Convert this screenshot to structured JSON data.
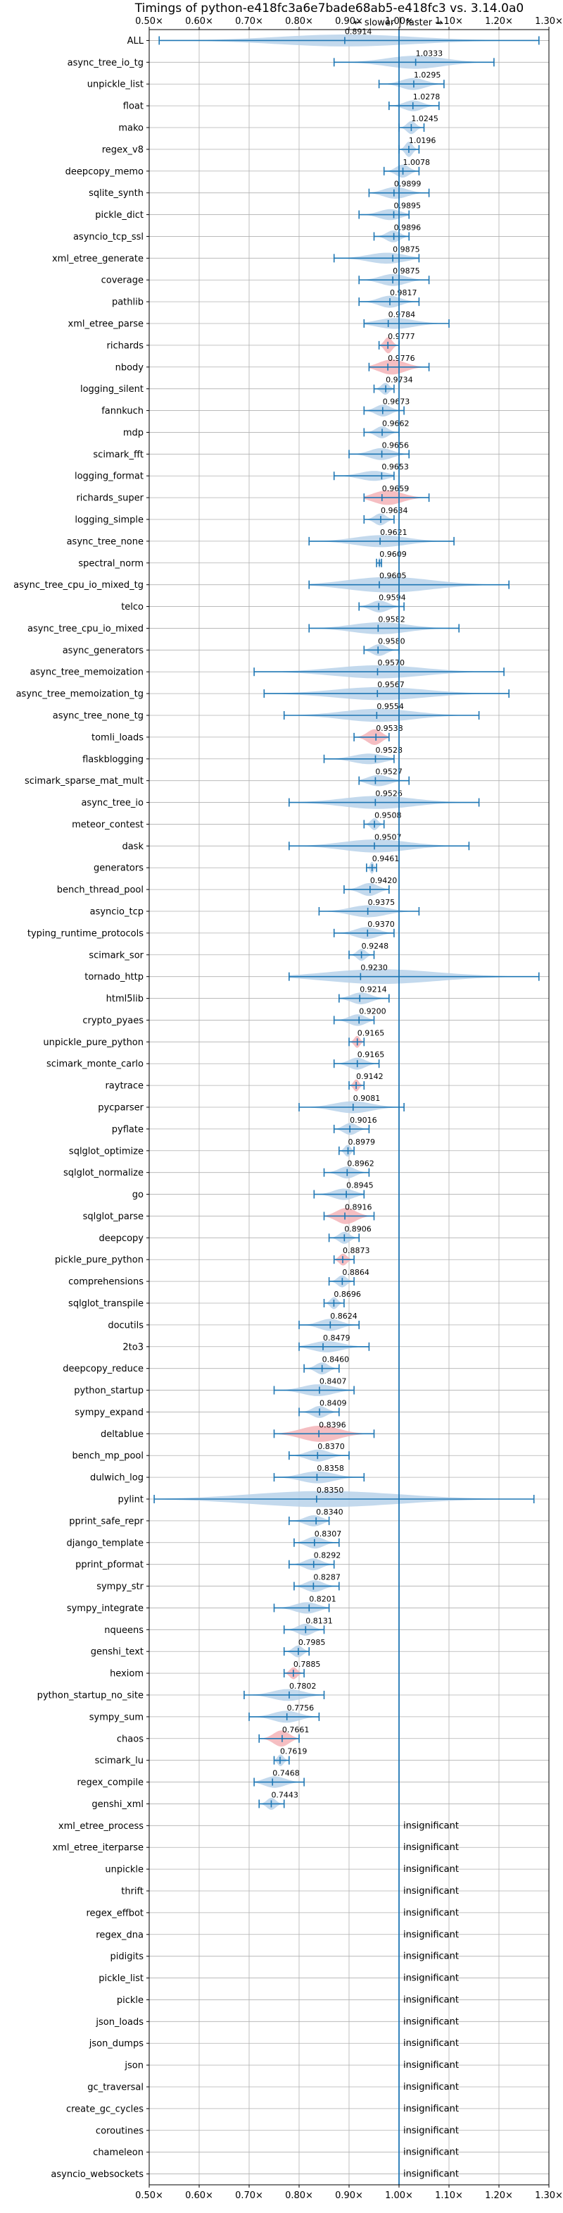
{
  "colors": {
    "faster": "#1f77b4",
    "faster_fill": "#b9d2ea",
    "slower": "#d62728",
    "slower_fill": "#f3b3b7",
    "grid": "#b0b0b0",
    "baseline": "#1f77b4"
  },
  "chart_data": {
    "type": "violin",
    "title": "Timings of python-e418fc3a6e7bade68ab5-e418fc3 vs. 3.14.0a0",
    "direction_label": "← slower │ faster →",
    "xlim": [
      0.5,
      1.3
    ],
    "xticks": [
      0.5,
      0.6,
      0.7,
      0.8,
      0.9,
      1.0,
      1.1,
      1.2,
      1.3
    ],
    "xtick_labels": [
      "0.50×",
      "0.60×",
      "0.70×",
      "0.80×",
      "0.90×",
      "1.00×",
      "1.10×",
      "1.20×",
      "1.30×"
    ],
    "baseline": 1.0,
    "insignificant_label": "insignificant",
    "benchmarks": [
      {
        "name": "ALL",
        "value": 0.8914,
        "label": "0.8914",
        "min": 0.52,
        "max": 1.28,
        "width": 0.55,
        "color": "blue"
      },
      {
        "name": "async_tree_io_tg",
        "value": 1.0333,
        "label": "1.0333",
        "min": 0.87,
        "max": 1.19,
        "width": 0.6,
        "color": "blue"
      },
      {
        "name": "unpickle_list",
        "value": 1.0295,
        "label": "1.0295",
        "min": 0.96,
        "max": 1.09,
        "width": 0.55,
        "color": "blue"
      },
      {
        "name": "float",
        "value": 1.0278,
        "label": "1.0278",
        "min": 0.98,
        "max": 1.08,
        "width": 0.5,
        "color": "blue"
      },
      {
        "name": "mako",
        "value": 1.0245,
        "label": "1.0245",
        "min": 1.0,
        "max": 1.05,
        "width": 0.6,
        "color": "blue"
      },
      {
        "name": "regex_v8",
        "value": 1.0196,
        "label": "1.0196",
        "min": 1.0,
        "max": 1.04,
        "width": 0.7,
        "color": "blue"
      },
      {
        "name": "deepcopy_memo",
        "value": 1.0078,
        "label": "1.0078",
        "min": 0.97,
        "max": 1.04,
        "width": 0.6,
        "color": "blue"
      },
      {
        "name": "sqlite_synth",
        "value": 0.9899,
        "label": "0.9899",
        "min": 0.94,
        "max": 1.06,
        "width": 0.55,
        "color": "blue"
      },
      {
        "name": "pickle_dict",
        "value": 0.9895,
        "label": "0.9895",
        "min": 0.92,
        "max": 1.02,
        "width": 0.55,
        "color": "blue"
      },
      {
        "name": "asyncio_tcp_ssl",
        "value": 0.9896,
        "label": "0.9896",
        "min": 0.95,
        "max": 1.02,
        "width": 0.55,
        "color": "blue"
      },
      {
        "name": "xml_etree_generate",
        "value": 0.9875,
        "label": "0.9875",
        "min": 0.87,
        "max": 1.04,
        "width": 0.55,
        "color": "blue"
      },
      {
        "name": "coverage",
        "value": 0.9875,
        "label": "0.9875",
        "min": 0.92,
        "max": 1.06,
        "width": 0.55,
        "color": "blue"
      },
      {
        "name": "pathlib",
        "value": 0.9817,
        "label": "0.9817",
        "min": 0.92,
        "max": 1.04,
        "width": 0.55,
        "color": "blue"
      },
      {
        "name": "xml_etree_parse",
        "value": 0.9784,
        "label": "0.9784",
        "min": 0.93,
        "max": 1.1,
        "width": 0.55,
        "color": "blue"
      },
      {
        "name": "richards",
        "value": 0.9777,
        "label": "0.9777",
        "min": 0.96,
        "max": 1.0,
        "width": 0.75,
        "color": "red"
      },
      {
        "name": "nbody",
        "value": 0.9776,
        "label": "0.9776",
        "min": 0.94,
        "max": 1.06,
        "width": 0.75,
        "color": "red"
      },
      {
        "name": "logging_silent",
        "value": 0.9734,
        "label": "0.9734",
        "min": 0.95,
        "max": 0.99,
        "width": 0.55,
        "color": "blue"
      },
      {
        "name": "fannkuch",
        "value": 0.9673,
        "label": "0.9673",
        "min": 0.93,
        "max": 1.01,
        "width": 0.55,
        "color": "blue"
      },
      {
        "name": "mdp",
        "value": 0.9662,
        "label": "0.9662",
        "min": 0.93,
        "max": 1.0,
        "width": 0.55,
        "color": "blue"
      },
      {
        "name": "scimark_fft",
        "value": 0.9656,
        "label": "0.9656",
        "min": 0.9,
        "max": 1.02,
        "width": 0.55,
        "color": "blue"
      },
      {
        "name": "logging_format",
        "value": 0.9653,
        "label": "0.9653",
        "min": 0.87,
        "max": 0.99,
        "width": 0.55,
        "color": "blue"
      },
      {
        "name": "richards_super",
        "value": 0.9659,
        "label": "0.9659",
        "min": 0.93,
        "max": 1.06,
        "width": 0.75,
        "color": "red"
      },
      {
        "name": "logging_simple",
        "value": 0.9634,
        "label": "0.9634",
        "min": 0.93,
        "max": 0.99,
        "width": 0.55,
        "color": "blue"
      },
      {
        "name": "async_tree_none",
        "value": 0.9621,
        "label": "0.9621",
        "min": 0.82,
        "max": 1.11,
        "width": 0.55,
        "color": "blue"
      },
      {
        "name": "spectral_norm",
        "value": 0.9609,
        "label": "0.9609",
        "min": 0.955,
        "max": 0.965,
        "width": 0.5,
        "color": "blue"
      },
      {
        "name": "async_tree_cpu_io_mixed_tg",
        "value": 0.9605,
        "label": "0.9605",
        "min": 0.82,
        "max": 1.22,
        "width": 0.75,
        "color": "blue"
      },
      {
        "name": "telco",
        "value": 0.9594,
        "label": "0.9594",
        "min": 0.92,
        "max": 1.01,
        "width": 0.55,
        "color": "blue"
      },
      {
        "name": "async_tree_cpu_io_mixed",
        "value": 0.9582,
        "label": "0.9582",
        "min": 0.82,
        "max": 1.12,
        "width": 0.55,
        "color": "blue"
      },
      {
        "name": "async_generators",
        "value": 0.958,
        "label": "0.9580",
        "min": 0.93,
        "max": 1.0,
        "width": 0.55,
        "color": "blue"
      },
      {
        "name": "async_tree_memoization",
        "value": 0.957,
        "label": "0.9570",
        "min": 0.71,
        "max": 1.21,
        "width": 0.6,
        "color": "blue"
      },
      {
        "name": "async_tree_memoization_tg",
        "value": 0.9567,
        "label": "0.9567",
        "min": 0.73,
        "max": 1.22,
        "width": 0.6,
        "color": "blue"
      },
      {
        "name": "async_tree_none_tg",
        "value": 0.9554,
        "label": "0.9554",
        "min": 0.77,
        "max": 1.16,
        "width": 0.6,
        "color": "blue"
      },
      {
        "name": "tomli_loads",
        "value": 0.9538,
        "label": "0.9538",
        "min": 0.91,
        "max": 0.98,
        "width": 0.75,
        "color": "red"
      },
      {
        "name": "flaskblogging",
        "value": 0.9528,
        "label": "0.9528",
        "min": 0.85,
        "max": 0.99,
        "width": 0.55,
        "color": "blue"
      },
      {
        "name": "scimark_sparse_mat_mult",
        "value": 0.9527,
        "label": "0.9527",
        "min": 0.92,
        "max": 1.02,
        "width": 0.55,
        "color": "blue"
      },
      {
        "name": "async_tree_io",
        "value": 0.9526,
        "label": "0.9526",
        "min": 0.78,
        "max": 1.16,
        "width": 0.6,
        "color": "blue"
      },
      {
        "name": "meteor_contest",
        "value": 0.9508,
        "label": "0.9508",
        "min": 0.93,
        "max": 0.97,
        "width": 0.55,
        "color": "blue"
      },
      {
        "name": "dask",
        "value": 0.9507,
        "label": "0.9507",
        "min": 0.78,
        "max": 1.14,
        "width": 0.6,
        "color": "blue"
      },
      {
        "name": "generators",
        "value": 0.9461,
        "label": "0.9461",
        "min": 0.935,
        "max": 0.955,
        "width": 0.55,
        "color": "blue"
      },
      {
        "name": "bench_thread_pool",
        "value": 0.942,
        "label": "0.9420",
        "min": 0.89,
        "max": 0.98,
        "width": 0.6,
        "color": "blue"
      },
      {
        "name": "asyncio_tcp",
        "value": 0.9375,
        "label": "0.9375",
        "min": 0.84,
        "max": 1.04,
        "width": 0.55,
        "color": "blue"
      },
      {
        "name": "typing_runtime_protocols",
        "value": 0.937,
        "label": "0.9370",
        "min": 0.87,
        "max": 0.99,
        "width": 0.55,
        "color": "blue"
      },
      {
        "name": "scimark_sor",
        "value": 0.9248,
        "label": "0.9248",
        "min": 0.9,
        "max": 0.95,
        "width": 0.55,
        "color": "blue"
      },
      {
        "name": "tornado_http",
        "value": 0.923,
        "label": "0.9230",
        "min": 0.78,
        "max": 1.28,
        "width": 0.75,
        "color": "blue"
      },
      {
        "name": "html5lib",
        "value": 0.9214,
        "label": "0.9214",
        "min": 0.88,
        "max": 0.98,
        "width": 0.55,
        "color": "blue"
      },
      {
        "name": "crypto_pyaes",
        "value": 0.92,
        "label": "0.9200",
        "min": 0.87,
        "max": 0.95,
        "width": 0.55,
        "color": "blue"
      },
      {
        "name": "unpickle_pure_python",
        "value": 0.9165,
        "label": "0.9165",
        "min": 0.9,
        "max": 0.93,
        "width": 0.55,
        "color": "red"
      },
      {
        "name": "scimark_monte_carlo",
        "value": 0.9165,
        "label": "0.9165",
        "min": 0.87,
        "max": 0.96,
        "width": 0.55,
        "color": "blue"
      },
      {
        "name": "raytrace",
        "value": 0.9142,
        "label": "0.9142",
        "min": 0.9,
        "max": 0.93,
        "width": 0.55,
        "color": "red"
      },
      {
        "name": "pycparser",
        "value": 0.9081,
        "label": "0.9081",
        "min": 0.8,
        "max": 1.01,
        "width": 0.55,
        "color": "blue"
      },
      {
        "name": "pyflate",
        "value": 0.9016,
        "label": "0.9016",
        "min": 0.87,
        "max": 0.94,
        "width": 0.55,
        "color": "blue"
      },
      {
        "name": "sqlglot_optimize",
        "value": 0.8979,
        "label": "0.8979",
        "min": 0.88,
        "max": 0.91,
        "width": 0.55,
        "color": "blue"
      },
      {
        "name": "sqlglot_normalize",
        "value": 0.8962,
        "label": "0.8962",
        "min": 0.85,
        "max": 0.94,
        "width": 0.55,
        "color": "blue"
      },
      {
        "name": "go",
        "value": 0.8945,
        "label": "0.8945",
        "min": 0.83,
        "max": 0.93,
        "width": 0.55,
        "color": "blue"
      },
      {
        "name": "sqlglot_parse",
        "value": 0.8916,
        "label": "0.8916",
        "min": 0.85,
        "max": 0.95,
        "width": 0.75,
        "color": "red"
      },
      {
        "name": "deepcopy",
        "value": 0.8906,
        "label": "0.8906",
        "min": 0.86,
        "max": 0.92,
        "width": 0.55,
        "color": "blue"
      },
      {
        "name": "pickle_pure_python",
        "value": 0.8873,
        "label": "0.8873",
        "min": 0.87,
        "max": 0.91,
        "width": 0.55,
        "color": "red"
      },
      {
        "name": "comprehensions",
        "value": 0.8864,
        "label": "0.8864",
        "min": 0.86,
        "max": 0.91,
        "width": 0.55,
        "color": "blue"
      },
      {
        "name": "sqlglot_transpile",
        "value": 0.8696,
        "label": "0.8696",
        "min": 0.85,
        "max": 0.89,
        "width": 0.55,
        "color": "blue"
      },
      {
        "name": "docutils",
        "value": 0.8624,
        "label": "0.8624",
        "min": 0.8,
        "max": 0.92,
        "width": 0.55,
        "color": "blue"
      },
      {
        "name": "2to3",
        "value": 0.8479,
        "label": "0.8479",
        "min": 0.8,
        "max": 0.94,
        "width": 0.55,
        "color": "blue"
      },
      {
        "name": "deepcopy_reduce",
        "value": 0.846,
        "label": "0.8460",
        "min": 0.81,
        "max": 0.88,
        "width": 0.55,
        "color": "blue"
      },
      {
        "name": "python_startup",
        "value": 0.8407,
        "label": "0.8407",
        "min": 0.75,
        "max": 0.91,
        "width": 0.55,
        "color": "blue"
      },
      {
        "name": "sympy_expand",
        "value": 0.8409,
        "label": "0.8409",
        "min": 0.8,
        "max": 0.88,
        "width": 0.55,
        "color": "blue"
      },
      {
        "name": "deltablue",
        "value": 0.8396,
        "label": "0.8396",
        "min": 0.75,
        "max": 0.95,
        "width": 0.75,
        "color": "red"
      },
      {
        "name": "bench_mp_pool",
        "value": 0.837,
        "label": "0.8370",
        "min": 0.78,
        "max": 0.9,
        "width": 0.55,
        "color": "blue"
      },
      {
        "name": "dulwich_log",
        "value": 0.8358,
        "label": "0.8358",
        "min": 0.75,
        "max": 0.93,
        "width": 0.55,
        "color": "blue"
      },
      {
        "name": "pylint",
        "value": 0.835,
        "label": "0.8350",
        "min": 0.51,
        "max": 1.27,
        "width": 0.75,
        "color": "blue"
      },
      {
        "name": "pprint_safe_repr",
        "value": 0.834,
        "label": "0.8340",
        "min": 0.78,
        "max": 0.86,
        "width": 0.55,
        "color": "blue"
      },
      {
        "name": "django_template",
        "value": 0.8307,
        "label": "0.8307",
        "min": 0.79,
        "max": 0.88,
        "width": 0.55,
        "color": "blue"
      },
      {
        "name": "pprint_pformat",
        "value": 0.8292,
        "label": "0.8292",
        "min": 0.78,
        "max": 0.87,
        "width": 0.55,
        "color": "blue"
      },
      {
        "name": "sympy_str",
        "value": 0.8287,
        "label": "0.8287",
        "min": 0.79,
        "max": 0.88,
        "width": 0.55,
        "color": "blue"
      },
      {
        "name": "sympy_integrate",
        "value": 0.8201,
        "label": "0.8201",
        "min": 0.75,
        "max": 0.86,
        "width": 0.55,
        "color": "blue"
      },
      {
        "name": "nqueens",
        "value": 0.8131,
        "label": "0.8131",
        "min": 0.77,
        "max": 0.85,
        "width": 0.55,
        "color": "blue"
      },
      {
        "name": "genshi_text",
        "value": 0.7985,
        "label": "0.7985",
        "min": 0.77,
        "max": 0.82,
        "width": 0.55,
        "color": "blue"
      },
      {
        "name": "hexiom",
        "value": 0.7885,
        "label": "0.7885",
        "min": 0.77,
        "max": 0.81,
        "width": 0.55,
        "color": "red"
      },
      {
        "name": "python_startup_no_site",
        "value": 0.7802,
        "label": "0.7802",
        "min": 0.69,
        "max": 0.85,
        "width": 0.55,
        "color": "blue"
      },
      {
        "name": "sympy_sum",
        "value": 0.7756,
        "label": "0.7756",
        "min": 0.7,
        "max": 0.84,
        "width": 0.55,
        "color": "blue"
      },
      {
        "name": "chaos",
        "value": 0.7661,
        "label": "0.7661",
        "min": 0.72,
        "max": 0.8,
        "width": 0.75,
        "color": "red"
      },
      {
        "name": "scimark_lu",
        "value": 0.7619,
        "label": "0.7619",
        "min": 0.75,
        "max": 0.78,
        "width": 0.55,
        "color": "blue"
      },
      {
        "name": "regex_compile",
        "value": 0.7468,
        "label": "0.7468",
        "min": 0.71,
        "max": 0.81,
        "width": 0.55,
        "color": "blue"
      },
      {
        "name": "genshi_xml",
        "value": 0.7443,
        "label": "0.7443",
        "min": 0.72,
        "max": 0.77,
        "width": 0.55,
        "color": "blue"
      },
      {
        "name": "xml_etree_process",
        "insignificant": true
      },
      {
        "name": "xml_etree_iterparse",
        "insignificant": true
      },
      {
        "name": "unpickle",
        "insignificant": true
      },
      {
        "name": "thrift",
        "insignificant": true
      },
      {
        "name": "regex_effbot",
        "insignificant": true
      },
      {
        "name": "regex_dna",
        "insignificant": true
      },
      {
        "name": "pidigits",
        "insignificant": true
      },
      {
        "name": "pickle_list",
        "insignificant": true
      },
      {
        "name": "pickle",
        "insignificant": true
      },
      {
        "name": "json_loads",
        "insignificant": true
      },
      {
        "name": "json_dumps",
        "insignificant": true
      },
      {
        "name": "json",
        "insignificant": true
      },
      {
        "name": "gc_traversal",
        "insignificant": true
      },
      {
        "name": "create_gc_cycles",
        "insignificant": true
      },
      {
        "name": "coroutines",
        "insignificant": true
      },
      {
        "name": "chameleon",
        "insignificant": true
      },
      {
        "name": "asyncio_websockets",
        "insignificant": true
      }
    ]
  }
}
